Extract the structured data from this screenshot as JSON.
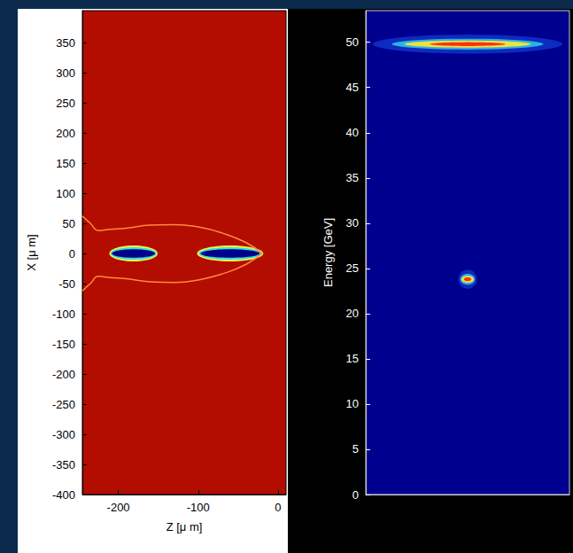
{
  "chart_data": [
    {
      "type": "density_map",
      "xlabel": "Z [μ m]",
      "ylabel": "X [μ m]",
      "xlim": [
        -245,
        10
      ],
      "xticks": [
        -200,
        -100,
        0
      ],
      "ylim": [
        -400,
        403
      ],
      "yticks": [
        -400,
        -350,
        -300,
        -250,
        -200,
        -150,
        -100,
        -50,
        0,
        50,
        100,
        150,
        200,
        250,
        300,
        350
      ],
      "color": "#b30c00",
      "bunches": [
        {
          "z": -181,
          "x": 0,
          "z_halfwidth": 27,
          "x_halfwidth": 7
        },
        {
          "z": -60,
          "x": 0,
          "z_halfwidth": 37,
          "x_halfwidth": 7
        }
      ],
      "sheath": [
        {
          "z": [
            -245,
            -235,
            -225,
            -210,
            -190,
            -160,
            -130,
            -100,
            -70,
            -40,
            -20
          ],
          "x": [
            62,
            50,
            38,
            40,
            42,
            47,
            48,
            44,
            34,
            18,
            0
          ]
        },
        {
          "z": [
            -245,
            -235,
            -225,
            -210,
            -190,
            -160,
            -130,
            -100,
            -70,
            -40,
            -20
          ],
          "x": [
            -62,
            -50,
            -38,
            -40,
            -42,
            -47,
            -48,
            -44,
            -34,
            -18,
            0
          ]
        }
      ]
    },
    {
      "type": "spectrum",
      "ylabel": "Energy [GeV]",
      "xlim": [
        -1,
        1
      ],
      "ylim": [
        0,
        53.5
      ],
      "yticks": [
        0,
        5,
        10,
        15,
        20,
        25,
        30,
        35,
        40,
        45,
        50
      ],
      "tick_labels": "y",
      "color": "#00008f",
      "spots": [
        {
          "energy": 49.8,
          "x": 0,
          "x_halfwidth": 0.62,
          "energy_halfwidth": 0.3
        },
        {
          "energy": 23.8,
          "x": 0,
          "x_halfwidth": 0.06,
          "energy_halfwidth": 0.3
        }
      ]
    }
  ]
}
